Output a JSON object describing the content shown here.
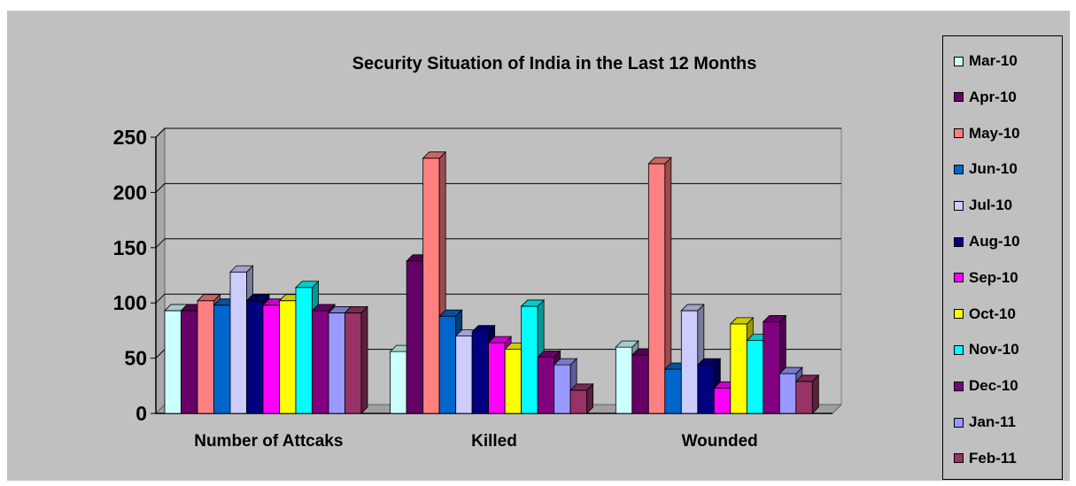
{
  "chart_data": {
    "type": "bar",
    "title": "Security Situation of India in the Last 12 Months",
    "categories": [
      "Number of Attcaks",
      "Killed",
      "Wounded"
    ],
    "ylim": [
      0,
      250
    ],
    "yticks": [
      "0",
      "50",
      "100",
      "150",
      "200",
      "250"
    ],
    "grid": true,
    "legend_position": "right",
    "series": [
      {
        "name": "Mar-10",
        "color": "#ccffff",
        "values": [
          93,
          56,
          60
        ]
      },
      {
        "name": "Apr-10",
        "color": "#660066",
        "values": [
          93,
          138,
          53
        ]
      },
      {
        "name": "May-10",
        "color": "#ff8080",
        "values": [
          102,
          231,
          226
        ]
      },
      {
        "name": "Jun-10",
        "color": "#0066cc",
        "values": [
          98,
          88,
          40
        ]
      },
      {
        "name": "Jul-10",
        "color": "#ccccff",
        "values": [
          128,
          70,
          93
        ]
      },
      {
        "name": "Aug-10",
        "color": "#000080",
        "values": [
          102,
          74,
          44
        ]
      },
      {
        "name": "Sep-10",
        "color": "#ff00ff",
        "values": [
          98,
          64,
          23
        ]
      },
      {
        "name": "Oct-10",
        "color": "#ffff00",
        "values": [
          102,
          58,
          81
        ]
      },
      {
        "name": "Nov-10",
        "color": "#00ffff",
        "values": [
          114,
          97,
          66
        ]
      },
      {
        "name": "Dec-10",
        "color": "#800080",
        "values": [
          93,
          51,
          83
        ]
      },
      {
        "name": "Jan-11",
        "color": "#9999ff",
        "values": [
          91,
          44,
          36
        ]
      },
      {
        "name": "Feb-11",
        "color": "#993366",
        "values": [
          91,
          21,
          29
        ]
      }
    ]
  }
}
